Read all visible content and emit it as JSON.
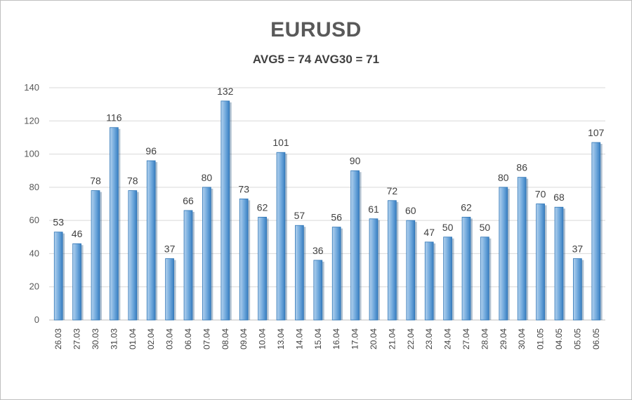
{
  "chart_data": {
    "type": "bar",
    "title": "EURUSD",
    "subtitle": "AVG5 = 74 AVG30 = 71",
    "categories": [
      "26.03",
      "27.03",
      "30.03",
      "31.03",
      "01.04",
      "02.04",
      "03.04",
      "06.04",
      "07.04",
      "08.04",
      "09.04",
      "10.04",
      "13.04",
      "14.04",
      "15.04",
      "16.04",
      "17.04",
      "20.04",
      "21.04",
      "22.04",
      "23.04",
      "24.04",
      "27.04",
      "28.04",
      "29.04",
      "30.04",
      "01.05",
      "04.05",
      "05.05",
      "06.05"
    ],
    "values": [
      53,
      46,
      78,
      116,
      78,
      96,
      37,
      66,
      80,
      132,
      73,
      62,
      101,
      57,
      36,
      56,
      90,
      61,
      72,
      60,
      47,
      50,
      62,
      50,
      80,
      86,
      70,
      68,
      37,
      107
    ],
    "ylim": [
      0,
      140
    ],
    "yticks": [
      0,
      20,
      40,
      60,
      80,
      100,
      120,
      140
    ],
    "grid": true,
    "legend": "none",
    "colors": {
      "bar_light": "#9dc3e6",
      "bar_mid": "#5b9bd5",
      "bar_dark": "#2e75b6",
      "grid": "#d9d9d9",
      "axis": "#bfbfbf"
    }
  }
}
